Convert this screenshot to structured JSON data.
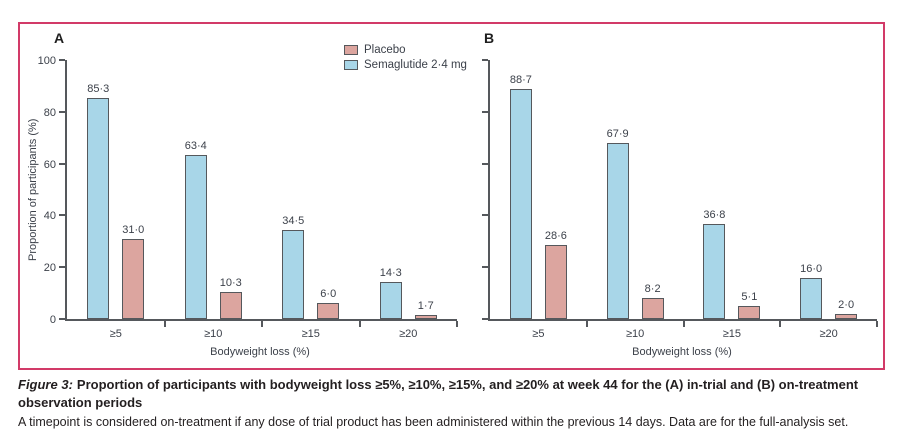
{
  "style": {
    "frame_color": "#d23a68",
    "axis_color": "#55585c",
    "label_text_color": "#3c414a",
    "caption_text_color": "#231f20",
    "placebo_color": "#dca59f",
    "semaglutide_color": "#a8d6e8"
  },
  "legend": {
    "items": [
      {
        "label": "Placebo",
        "key": "placebo",
        "color": "#dca59f"
      },
      {
        "label": "Semaglutide 2·4 mg",
        "key": "semaglutide",
        "color": "#a8d6e8"
      }
    ]
  },
  "caption": {
    "figure_label": "Figure 3:",
    "title": "Proportion of participants with bodyweight loss ≥5%, ≥10%, ≥15%, and ≥20% at week 44 for the (A) in-trial and (B) on-treatment observation periods",
    "footnote": "A timepoint is considered on-treatment if any dose of trial product has been administered within the previous 14 days. Data are for the full-analysis set."
  },
  "chart_data": [
    {
      "type": "bar",
      "panel_label": "A",
      "panel_description": "in-trial observation period",
      "categories": [
        "≥5",
        "≥10",
        "≥15",
        "≥20"
      ],
      "series": [
        {
          "name": "Semaglutide 2·4 mg",
          "key": "semaglutide",
          "color": "#a8d6e8",
          "values": [
            85.3,
            63.4,
            34.5,
            14.3
          ],
          "value_labels": [
            "85·3",
            "63·4",
            "34·5",
            "14·3"
          ]
        },
        {
          "name": "Placebo",
          "key": "placebo",
          "color": "#dca59f",
          "values": [
            31.0,
            10.3,
            6.0,
            1.7
          ],
          "value_labels": [
            "31·0",
            "10·3",
            "6·0",
            "1·7"
          ]
        }
      ],
      "xlabel": "Bodyweight loss (%)",
      "ylabel": "Proportion of participants (%)",
      "ylim": [
        0,
        100
      ],
      "yticks": [
        0,
        20,
        40,
        60,
        80,
        100
      ],
      "show_ytick_labels": true,
      "grid": false,
      "legend_position": "top-right-of-panel-A"
    },
    {
      "type": "bar",
      "panel_label": "B",
      "panel_description": "on-treatment observation period",
      "categories": [
        "≥5",
        "≥10",
        "≥15",
        "≥20"
      ],
      "series": [
        {
          "name": "Semaglutide 2·4 mg",
          "key": "semaglutide",
          "color": "#a8d6e8",
          "values": [
            88.7,
            67.9,
            36.8,
            16.0
          ],
          "value_labels": [
            "88·7",
            "67·9",
            "36·8",
            "16·0"
          ]
        },
        {
          "name": "Placebo",
          "key": "placebo",
          "color": "#dca59f",
          "values": [
            28.6,
            8.2,
            5.1,
            2.0
          ],
          "value_labels": [
            "28·6",
            "8·2",
            "5·1",
            "2·0"
          ]
        }
      ],
      "xlabel": "Bodyweight loss (%)",
      "ylabel": "Proportion of participants (%)",
      "ylim": [
        0,
        100
      ],
      "yticks": [
        0,
        20,
        40,
        60,
        80,
        100
      ],
      "show_ytick_labels": false,
      "grid": false
    }
  ]
}
